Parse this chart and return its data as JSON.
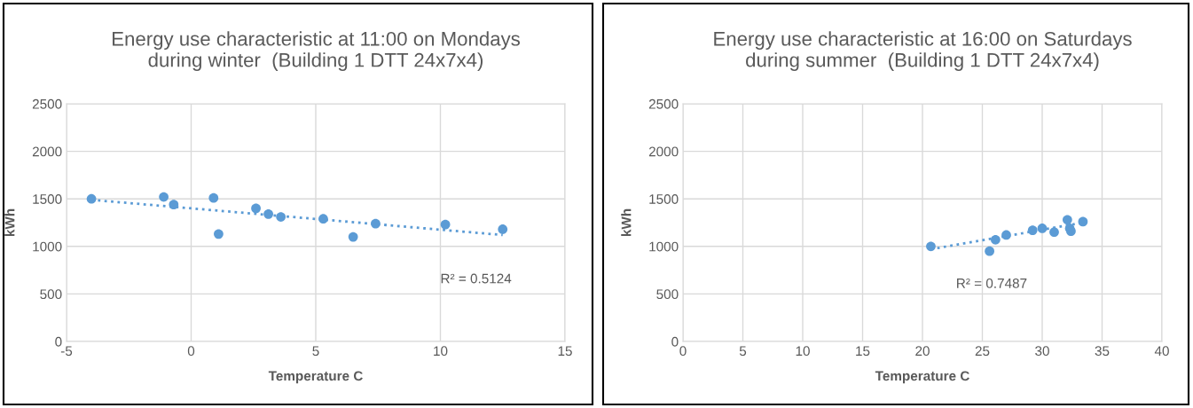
{
  "chart_data": [
    {
      "type": "scatter",
      "title": "Energy use characteristic at 11:00 on Mondays\nduring winter  (Building 1 DTT 24x7x4)",
      "xlabel": "Temperature C",
      "ylabel": "kWh",
      "xlim": [
        -5,
        15
      ],
      "xticks": [
        -5,
        0,
        5,
        10,
        15
      ],
      "ylim": [
        0,
        2500
      ],
      "yticks": [
        0,
        500,
        1000,
        1500,
        2000,
        2500
      ],
      "grid": true,
      "series": [
        {
          "color": "#5b9bd5",
          "marker": "circle",
          "x": [
            -4.0,
            -1.1,
            -0.7,
            0.9,
            1.1,
            2.6,
            3.1,
            3.6,
            5.3,
            6.5,
            7.4,
            10.2,
            12.5
          ],
          "values": [
            1500,
            1520,
            1440,
            1510,
            1130,
            1400,
            1340,
            1310,
            1290,
            1100,
            1240,
            1230,
            1180
          ]
        },
        {
          "type": "line",
          "color": "#5b9bd5",
          "marker": "none",
          "line_style": "dotted",
          "x": [
            -4.0,
            12.5
          ],
          "values": [
            1490,
            1120
          ]
        }
      ],
      "annotations": [
        "R² = 0.5124"
      ]
    },
    {
      "type": "scatter",
      "title": "Energy use characteristic at 16:00 on Saturdays\nduring summer  (Building 1 DTT 24x7x4)",
      "xlabel": "Temperature C",
      "ylabel": "kWh",
      "xlim": [
        0,
        40
      ],
      "xticks": [
        0,
        5,
        10,
        15,
        20,
        25,
        30,
        35,
        40
      ],
      "ylim": [
        0,
        2500
      ],
      "yticks": [
        0,
        500,
        1000,
        1500,
        2000,
        2500
      ],
      "grid": true,
      "series": [
        {
          "color": "#5b9bd5",
          "marker": "circle",
          "x": [
            20.7,
            25.6,
            26.1,
            27.0,
            29.2,
            30.0,
            31.0,
            32.1,
            32.3,
            32.4,
            33.4
          ],
          "values": [
            1000,
            950,
            1070,
            1120,
            1170,
            1190,
            1150,
            1280,
            1190,
            1160,
            1260
          ]
        },
        {
          "type": "line",
          "color": "#5b9bd5",
          "marker": "none",
          "line_style": "dotted",
          "x": [
            20.7,
            33.4
          ],
          "values": [
            970,
            1250
          ]
        }
      ],
      "annotations": [
        "R² = 0.7487"
      ]
    }
  ]
}
